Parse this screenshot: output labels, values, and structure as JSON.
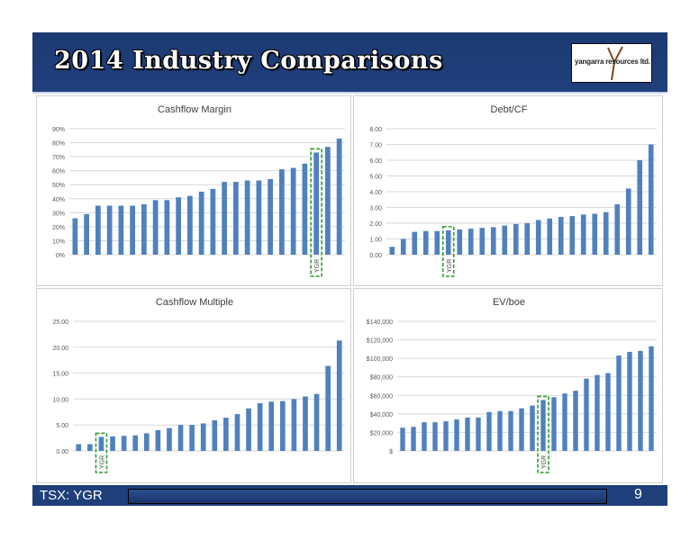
{
  "header": {
    "title": "2014 Industry Comparisons",
    "logo_text": "yangarra resources ltd."
  },
  "footer": {
    "ticker": "TSX: YGR",
    "page_number": "9"
  },
  "colors": {
    "bar": "#4f81bd",
    "highlight": "#2e9e2e",
    "header_bg": "#1f3f7a"
  },
  "chart_data": [
    {
      "type": "bar",
      "title": "Cashflow Margin",
      "ylim": [
        0,
        90
      ],
      "yticks": [
        "0%",
        "10%",
        "20%",
        "30%",
        "40%",
        "50%",
        "60%",
        "70%",
        "80%",
        "90%"
      ],
      "values": [
        26,
        29,
        35,
        35,
        35,
        35,
        36,
        39,
        39,
        41,
        42,
        45,
        47,
        52,
        52,
        53,
        53,
        54,
        61,
        62,
        65,
        73,
        77,
        83
      ],
      "highlight_index": 21,
      "highlight_label": "YGR",
      "grid": true
    },
    {
      "type": "bar",
      "title": "Debt/CF",
      "ylim": [
        0,
        8
      ],
      "yticks": [
        "0.00",
        "1.00",
        "2.00",
        "3.00",
        "4.00",
        "5.00",
        "6.00",
        "7.00",
        "8.00"
      ],
      "values": [
        0.5,
        1.0,
        1.45,
        1.5,
        1.5,
        1.55,
        1.6,
        1.65,
        1.7,
        1.75,
        1.85,
        1.95,
        2.0,
        2.2,
        2.3,
        2.4,
        2.45,
        2.55,
        2.6,
        2.7,
        3.2,
        4.2,
        6.0,
        7.0
      ],
      "highlight_index": 5,
      "highlight_label": "YGR",
      "grid": true
    },
    {
      "type": "bar",
      "title": "Cashflow Multiple",
      "ylim": [
        0,
        25
      ],
      "yticks": [
        "0.00",
        "5.00",
        "10.00",
        "15.00",
        "20.00",
        "25.00"
      ],
      "values": [
        1.3,
        1.3,
        2.7,
        2.8,
        2.9,
        3.0,
        3.4,
        4.0,
        4.4,
        5.0,
        5.0,
        5.3,
        5.9,
        6.4,
        7.1,
        8.2,
        9.2,
        9.5,
        9.6,
        10.0,
        10.5,
        11.0,
        16.4,
        21.3
      ],
      "highlight_index": 2,
      "highlight_label": "YGR",
      "grid": true
    },
    {
      "type": "bar",
      "title": "EV/boe",
      "ylim": [
        0,
        140000
      ],
      "yticks": [
        "$",
        "$20,000",
        "$40,000",
        "$60,000",
        "$80,000",
        "$100,000",
        "$120,000",
        "$140,000"
      ],
      "values": [
        25000,
        26000,
        31000,
        31000,
        32000,
        34000,
        36000,
        36000,
        42000,
        43000,
        43000,
        46000,
        49000,
        55000,
        58000,
        62000,
        65000,
        78000,
        82000,
        84000,
        103000,
        107000,
        108000,
        113000
      ],
      "highlight_index": 13,
      "highlight_label": "YGR",
      "grid": true
    }
  ]
}
